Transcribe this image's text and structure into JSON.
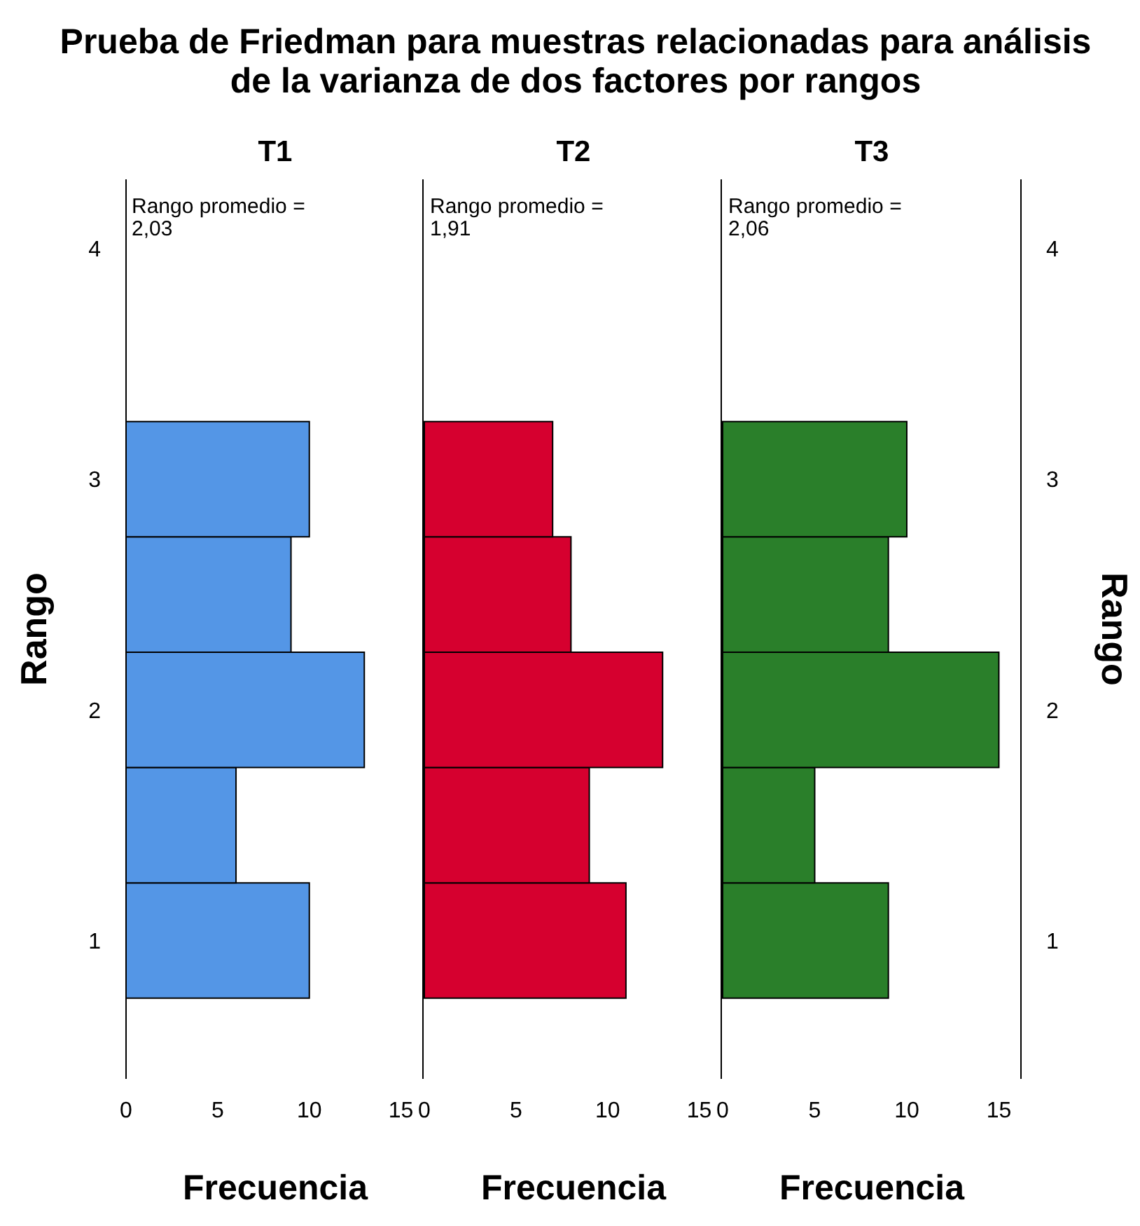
{
  "chart_data": [
    {
      "type": "histogram",
      "orientation": "horizontal",
      "title": "Prueba de Friedman para muestras relacionadas para análisis de la varianza de dos factores por rangos",
      "subtitle": "T1",
      "xlabel": "Frecuencia",
      "ylabel": "Rango",
      "bins": [
        0.75,
        1.25,
        1.75,
        2.25,
        2.75,
        3.25
      ],
      "values": [
        10,
        6,
        13,
        9,
        10
      ],
      "color": "#5496e6",
      "xlim": [
        0,
        16.2
      ],
      "xticks": [
        0,
        5,
        10,
        15
      ],
      "ylim": [
        0.4,
        4.3
      ],
      "yticks": [
        1,
        2,
        3,
        4
      ],
      "annotations": [
        "Rango promedio =\n2,03"
      ]
    },
    {
      "type": "histogram",
      "orientation": "horizontal",
      "subtitle": "T2",
      "xlabel": "Frecuencia",
      "bins": [
        0.75,
        1.25,
        1.75,
        2.25,
        2.75,
        3.25
      ],
      "values": [
        11,
        9,
        13,
        8,
        7
      ],
      "color": "#d6002f",
      "xlim": [
        0,
        16.2
      ],
      "xticks": [
        0,
        5,
        10,
        15
      ],
      "ylim": [
        0.4,
        4.3
      ],
      "yticks": [
        1,
        2,
        3,
        4
      ],
      "tick_labels": "x",
      "annotations": [
        "Rango promedio =\n1,91"
      ]
    },
    {
      "type": "histogram",
      "orientation": "horizontal",
      "subtitle": "T3",
      "xlabel": "Frecuencia",
      "ylabel": "Rango",
      "bins": [
        0.75,
        1.25,
        1.75,
        2.25,
        2.75,
        3.25
      ],
      "values": [
        9,
        5,
        15,
        9,
        10
      ],
      "color": "#2a7f2a",
      "xlim": [
        0,
        16.2
      ],
      "xticks": [
        0,
        5,
        10,
        15
      ],
      "ylim": [
        0.4,
        4.3
      ],
      "yticks": [
        1,
        2,
        3,
        4
      ],
      "annotations": [
        "Rango promedio =\n2,06"
      ]
    }
  ]
}
